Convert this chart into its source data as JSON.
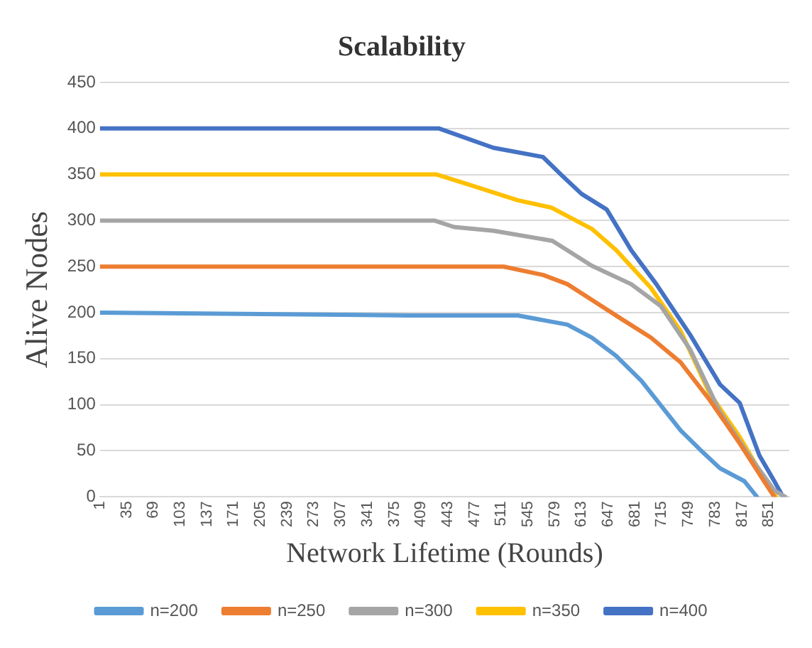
{
  "chart_data": {
    "type": "line",
    "title": "Scalability",
    "xlabel": "Network Lifetime (Rounds)",
    "ylabel": "Alive Nodes",
    "xlim": [
      1,
      877
    ],
    "xticks": [
      1,
      35,
      69,
      103,
      137,
      171,
      205,
      239,
      273,
      307,
      341,
      375,
      409,
      443,
      477,
      511,
      545,
      579,
      613,
      647,
      681,
      715,
      749,
      783,
      817,
      851
    ],
    "ylim": [
      0,
      450
    ],
    "yticks": [
      0,
      50,
      100,
      150,
      200,
      250,
      300,
      350,
      400,
      450
    ],
    "grid": "y",
    "legend": "bottom",
    "marker": "none",
    "line_style": "solid",
    "series": [
      {
        "name": "n=200",
        "color": "#5b9bd5",
        "x": [
          1,
          394,
          532,
          595,
          626,
          657,
          689,
          714,
          739,
          764,
          789,
          820,
          836
        ],
        "values": [
          200,
          197,
          197,
          187,
          173,
          153,
          126,
          99,
          72,
          51,
          31,
          17,
          0
        ]
      },
      {
        "name": "n=250",
        "color": "#ed7d31",
        "x": [
          1,
          514,
          564,
          595,
          626,
          664,
          701,
          739,
          776,
          814,
          845,
          858
        ],
        "values": [
          250,
          250,
          241,
          231,
          214,
          193,
          173,
          146,
          105,
          58,
          17,
          0
        ]
      },
      {
        "name": "n=300",
        "color": "#a5a5a5",
        "x": [
          1,
          426,
          451,
          501,
          576,
          626,
          676,
          714,
          751,
          789,
          826,
          858,
          872
        ],
        "values": [
          300,
          300,
          293,
          289,
          278,
          251,
          231,
          207,
          160,
          92,
          45,
          7,
          0
        ]
      },
      {
        "name": "n=350",
        "color": "#ffc000",
        "x": [
          1,
          429,
          470,
          532,
          575,
          626,
          657,
          701,
          739,
          776,
          814,
          851,
          860
        ],
        "values": [
          350,
          350,
          339,
          322,
          314,
          291,
          268,
          227,
          180,
          112,
          65,
          11,
          0
        ]
      },
      {
        "name": "n=400",
        "color": "#4472c4",
        "x": [
          1,
          432,
          501,
          564,
          588,
          613,
          645,
          676,
          708,
          751,
          789,
          814,
          839,
          858,
          869
        ],
        "values": [
          400,
          400,
          379,
          369,
          349,
          329,
          312,
          268,
          231,
          176,
          122,
          102,
          45,
          17,
          0
        ]
      }
    ]
  }
}
